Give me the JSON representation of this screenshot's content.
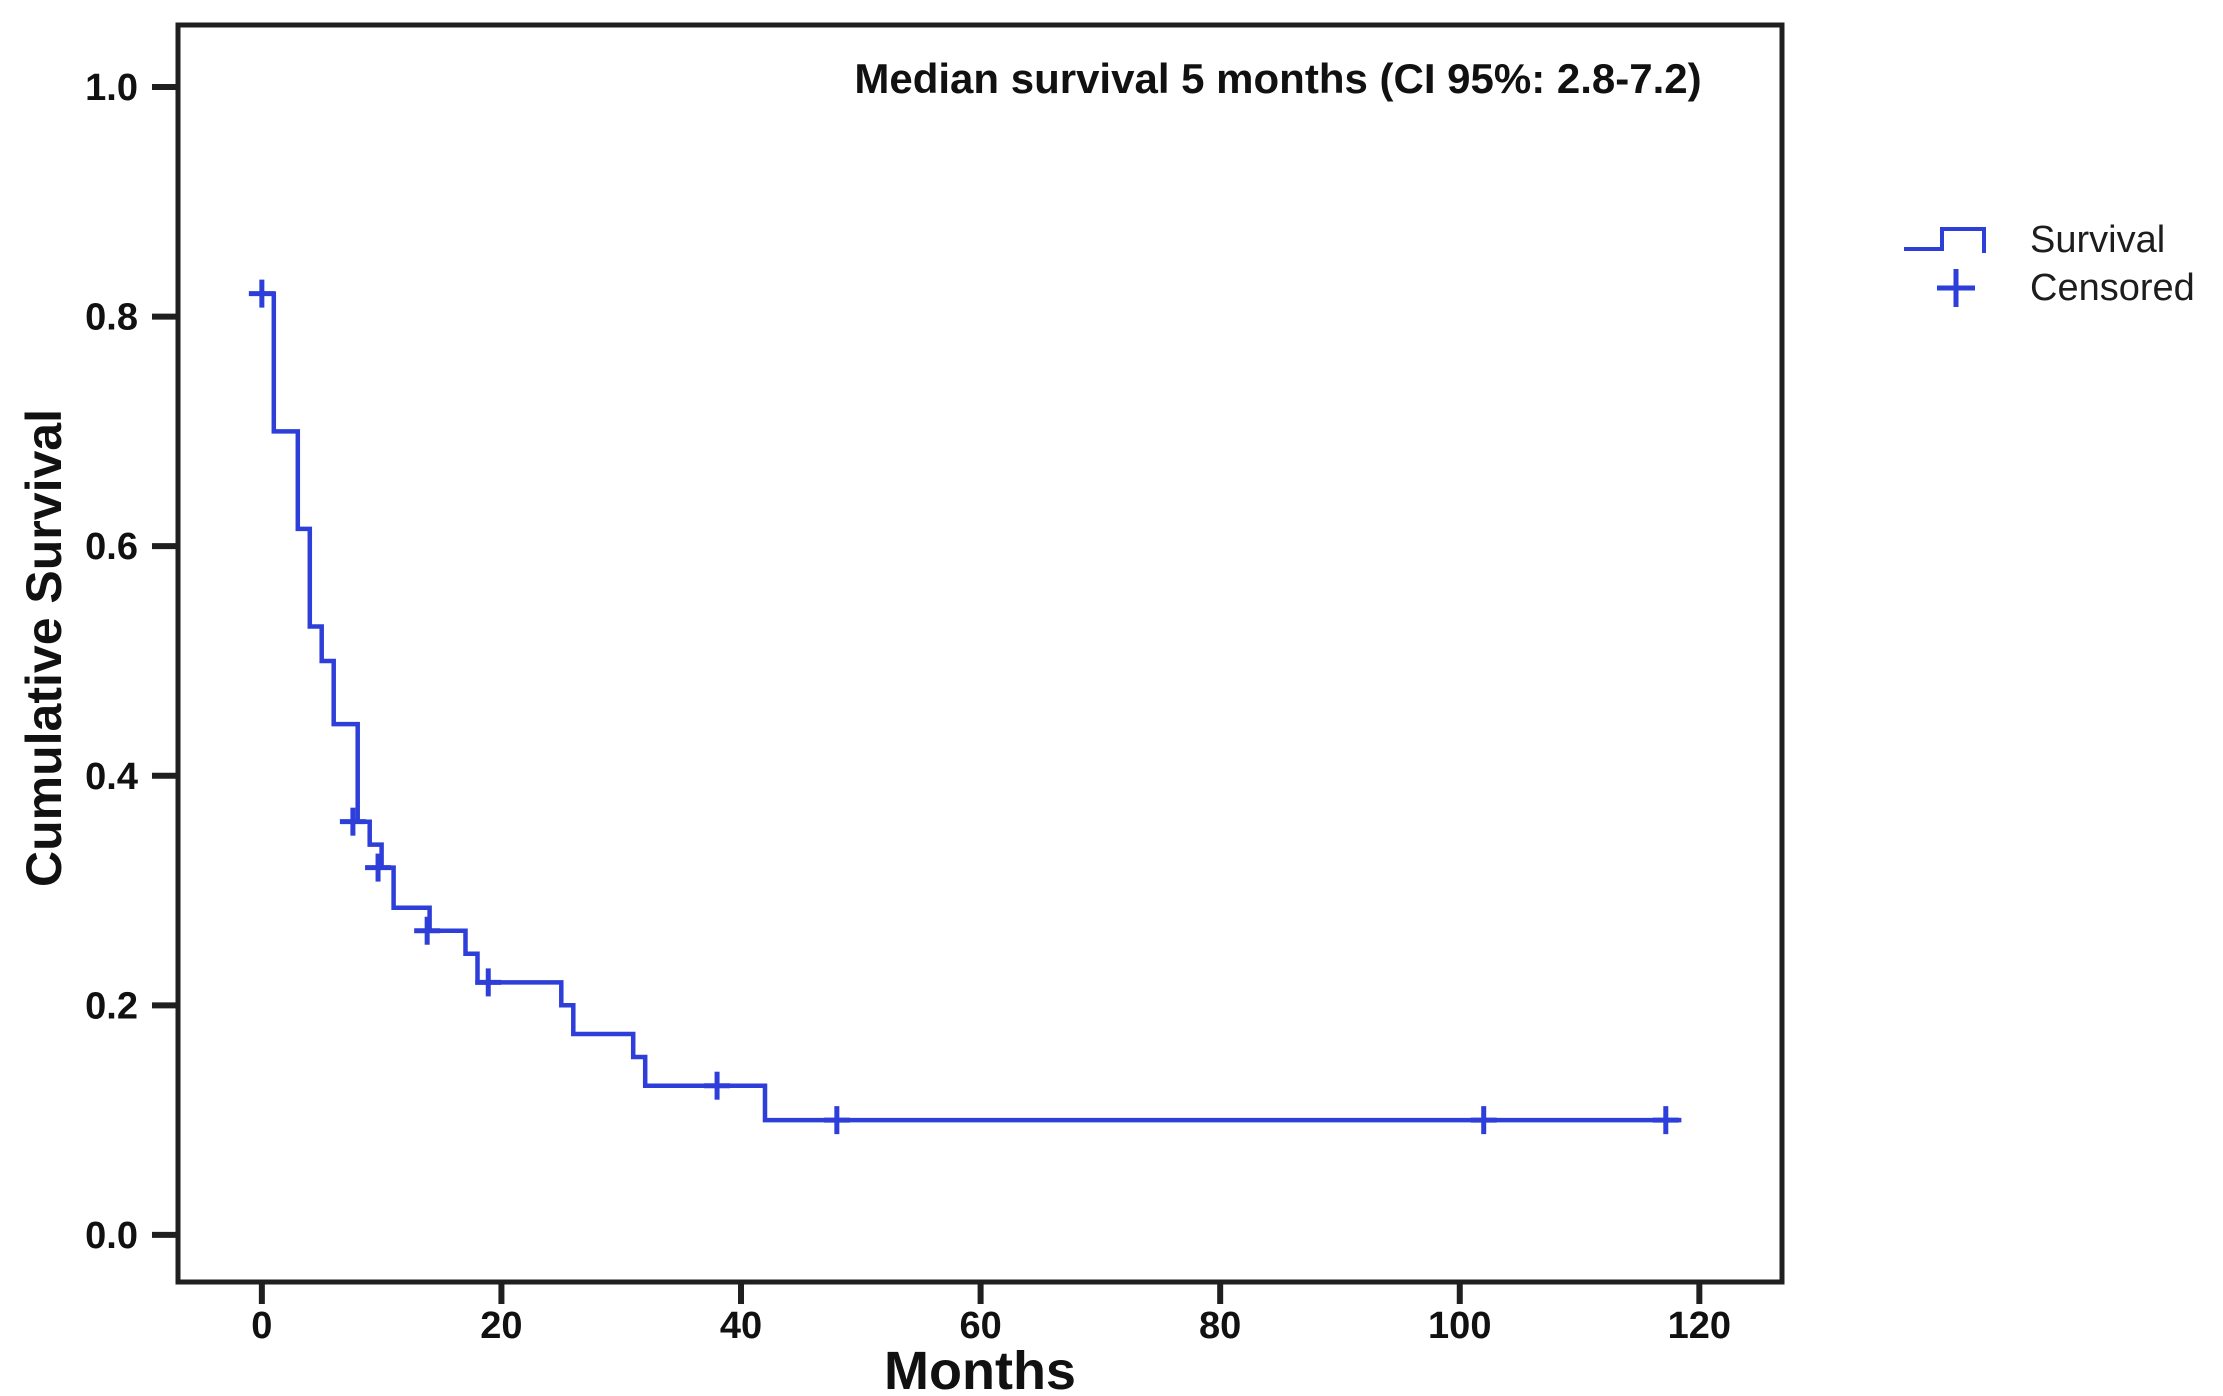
{
  "figure": {
    "annotation": "Median survival 5 months (CI 95%: 2.8-7.2)",
    "x_axis_title": "Months",
    "y_axis_title": "Cumulative Survival",
    "legend": [
      {
        "label": "Survival",
        "symbol": "step-line"
      },
      {
        "label": "Censored",
        "symbol": "plus-marker"
      }
    ],
    "colors": {
      "curve": "#2e3ed8",
      "axis": "#1f1f1f",
      "text": "#111111"
    }
  },
  "chart_data": {
    "type": "line",
    "subtype": "kaplan-meier-step",
    "title": "Median survival 5 months (CI 95%: 2.8-7.2)",
    "xlabel": "Months",
    "ylabel": "Cumulative Survival",
    "xlim": [
      -7,
      126.9
    ],
    "ylim": [
      -0.041,
      1.054
    ],
    "x_ticks": [
      0,
      20,
      40,
      60,
      80,
      100,
      120
    ],
    "y_ticks": [
      0.0,
      0.2,
      0.4,
      0.6,
      0.8,
      1.0
    ],
    "grid": false,
    "legend_position": "right",
    "median_survival_months": 5,
    "ci_95": "2.8-7.2",
    "series": [
      {
        "name": "Survival",
        "steps": [
          [
            0,
            0.82
          ],
          [
            1,
            0.7
          ],
          [
            3,
            0.615
          ],
          [
            4,
            0.53
          ],
          [
            5,
            0.5
          ],
          [
            6,
            0.445
          ],
          [
            8,
            0.36
          ],
          [
            9,
            0.34
          ],
          [
            10,
            0.32
          ],
          [
            11,
            0.285
          ],
          [
            14,
            0.265
          ],
          [
            17,
            0.245
          ],
          [
            18,
            0.22
          ],
          [
            25,
            0.2
          ],
          [
            26,
            0.175
          ],
          [
            31,
            0.155
          ],
          [
            32,
            0.13
          ],
          [
            42,
            0.1
          ]
        ],
        "end_time": 118.5
      }
    ],
    "censored": [
      [
        0,
        0.82
      ],
      [
        7.6,
        0.36
      ],
      [
        9.7,
        0.32
      ],
      [
        13.8,
        0.265
      ],
      [
        18.9,
        0.22
      ],
      [
        38,
        0.13
      ],
      [
        48,
        0.1
      ],
      [
        102,
        0.1
      ],
      [
        117.2,
        0.1
      ]
    ]
  }
}
